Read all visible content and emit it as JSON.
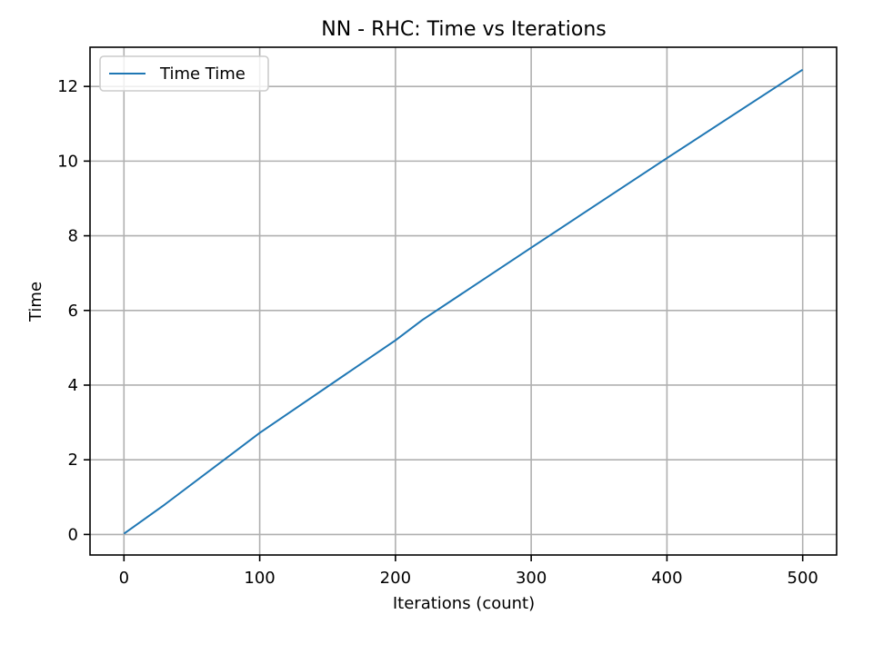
{
  "chart_data": {
    "type": "line",
    "title": "NN - RHC: Time vs Iterations",
    "xlabel": "Iterations (count)",
    "ylabel": "Time",
    "xlim": [
      -25,
      525
    ],
    "ylim": [
      -0.55,
      13.05
    ],
    "xticks": [
      0,
      100,
      200,
      300,
      400,
      500
    ],
    "yticks": [
      0,
      2,
      4,
      6,
      8,
      10,
      12
    ],
    "grid": true,
    "legend_position": "upper-left",
    "series": [
      {
        "name": "Time Time",
        "color": "#1f77b4",
        "x": [
          0,
          30,
          100,
          200,
          220,
          300,
          400,
          500
        ],
        "y": [
          0.02,
          0.8,
          2.72,
          5.2,
          5.75,
          7.68,
          10.08,
          12.45
        ]
      }
    ]
  }
}
